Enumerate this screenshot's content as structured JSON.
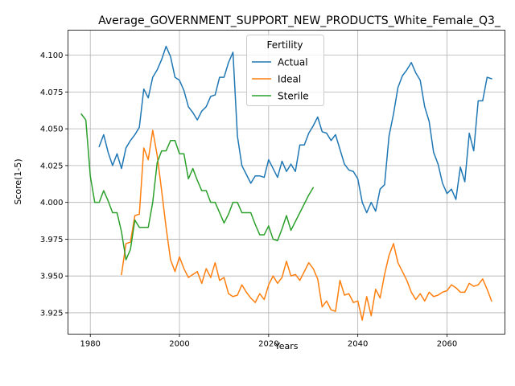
{
  "chart_data": {
    "type": "line",
    "title": "Average_GOVERNMENT_SUPPORT_NEW_PRODUCTS_White_Female_Q3_",
    "xlabel": "Years",
    "ylabel": "Score(1-5)",
    "xlim": [
      1975,
      2073
    ],
    "ylim": [
      3.9105,
      4.117
    ],
    "xticks": [
      1980,
      2000,
      2020,
      2040,
      2060
    ],
    "xtick_labels": [
      "1980",
      "2000",
      "2020",
      "2040",
      "2060"
    ],
    "yticks": [
      3.925,
      3.95,
      3.975,
      4.0,
      4.025,
      4.05,
      4.075,
      4.1
    ],
    "ytick_labels": [
      "3.925",
      "3.950",
      "3.975",
      "4.000",
      "4.025",
      "4.050",
      "4.075",
      "4.100"
    ],
    "grid": true,
    "legend": {
      "title": "Fertility",
      "placement": "top-center"
    },
    "series": [
      {
        "name": "Actual",
        "color": "#1f77b4",
        "x": [
          1982,
          1983,
          1984,
          1985,
          1986,
          1987,
          1988,
          1989,
          1990,
          1991,
          1992,
          1993,
          1994,
          1995,
          1996,
          1997,
          1998,
          1999,
          2000,
          2001,
          2002,
          2003,
          2004,
          2005,
          2006,
          2007,
          2008,
          2009,
          2010,
          2011,
          2012,
          2013,
          2014,
          2015,
          2016,
          2017,
          2018,
          2019,
          2020,
          2021,
          2022,
          2023,
          2024,
          2025,
          2026,
          2027,
          2028,
          2029,
          2030,
          2031,
          2032,
          2033,
          2034,
          2035,
          2036,
          2037,
          2038,
          2039,
          2040,
          2041,
          2042,
          2043,
          2044,
          2045,
          2046,
          2047,
          2048,
          2049,
          2050,
          2051,
          2052,
          2053,
          2054,
          2055,
          2056,
          2057,
          2058,
          2059,
          2060,
          2061,
          2062,
          2063,
          2064,
          2065,
          2066,
          2067,
          2068,
          2069,
          2070
        ],
        "values": [
          4.038,
          4.046,
          4.034,
          4.025,
          4.033,
          4.023,
          4.037,
          4.042,
          4.046,
          4.051,
          4.077,
          4.071,
          4.085,
          4.09,
          4.097,
          4.106,
          4.099,
          4.085,
          4.083,
          4.076,
          4.065,
          4.061,
          4.056,
          4.062,
          4.065,
          4.072,
          4.073,
          4.085,
          4.085,
          4.095,
          4.102,
          4.045,
          4.025,
          4.019,
          4.013,
          4.018,
          4.018,
          4.017,
          4.029,
          4.023,
          4.017,
          4.028,
          4.021,
          4.026,
          4.021,
          4.039,
          4.039,
          4.047,
          4.052,
          4.058,
          4.048,
          4.047,
          4.042,
          4.046,
          4.036,
          4.026,
          4.022,
          4.021,
          4.016,
          4.0,
          3.993,
          4.0,
          3.994,
          4.009,
          4.012,
          4.045,
          4.06,
          4.078,
          4.086,
          4.09,
          4.095,
          4.088,
          4.083,
          4.065,
          4.055,
          4.034,
          4.026,
          4.013,
          4.006,
          4.009,
          4.002,
          4.024,
          4.014,
          4.047,
          4.035,
          4.069,
          4.069,
          4.085,
          4.084
        ]
      },
      {
        "name": "Ideal",
        "color": "#ff7f0e",
        "x": [
          1987,
          1988,
          1989,
          1990,
          1991,
          1992,
          1993,
          1994,
          1995,
          1996,
          1997,
          1998,
          1999,
          2000,
          2001,
          2002,
          2003,
          2004,
          2005,
          2006,
          2007,
          2008,
          2009,
          2010,
          2011,
          2012,
          2013,
          2014,
          2015,
          2016,
          2017,
          2018,
          2019,
          2020,
          2021,
          2022,
          2023,
          2024,
          2025,
          2026,
          2027,
          2028,
          2029,
          2030,
          2031,
          2032,
          2033,
          2034,
          2035,
          2036,
          2037,
          2038,
          2039,
          2040,
          2041,
          2042,
          2043,
          2044,
          2045,
          2046,
          2047,
          2048,
          2049,
          2050,
          2051,
          2052,
          2053,
          2054,
          2055,
          2056,
          2057,
          2058,
          2059,
          2060,
          2061,
          2062,
          2063,
          2064,
          2065,
          2066,
          2067,
          2068,
          2069,
          2070
        ],
        "values": [
          3.951,
          3.972,
          3.973,
          3.991,
          3.992,
          4.037,
          4.029,
          4.049,
          4.032,
          4.008,
          3.983,
          3.961,
          3.953,
          3.963,
          3.955,
          3.949,
          3.951,
          3.953,
          3.945,
          3.955,
          3.949,
          3.959,
          3.947,
          3.949,
          3.938,
          3.936,
          3.937,
          3.944,
          3.939,
          3.935,
          3.932,
          3.938,
          3.934,
          3.944,
          3.95,
          3.945,
          3.949,
          3.96,
          3.95,
          3.951,
          3.947,
          3.953,
          3.959,
          3.955,
          3.948,
          3.929,
          3.933,
          3.927,
          3.926,
          3.947,
          3.937,
          3.938,
          3.932,
          3.933,
          3.92,
          3.936,
          3.923,
          3.941,
          3.935,
          3.951,
          3.964,
          3.972,
          3.959,
          3.953,
          3.947,
          3.939,
          3.934,
          3.938,
          3.933,
          3.939,
          3.936,
          3.937,
          3.939,
          3.94,
          3.944,
          3.942,
          3.939,
          3.939,
          3.945,
          3.943,
          3.944,
          3.948,
          3.941,
          3.933
        ]
      },
      {
        "name": "Sterile",
        "color": "#2ca02c",
        "x": [
          1978,
          1979,
          1980,
          1981,
          1982,
          1983,
          1984,
          1985,
          1986,
          1987,
          1988,
          1989,
          1990,
          1991,
          1992,
          1993,
          1994,
          1995,
          1996,
          1997,
          1998,
          1999,
          2000,
          2001,
          2002,
          2003,
          2004,
          2005,
          2006,
          2007,
          2008,
          2009,
          2010,
          2011,
          2012,
          2013,
          2014,
          2015,
          2016,
          2017,
          2018,
          2019,
          2020,
          2021,
          2022,
          2023,
          2024,
          2025,
          2026,
          2027,
          2028,
          2029,
          2030
        ],
        "values": [
          4.06,
          4.056,
          4.018,
          4.0,
          4.0,
          4.008,
          4.001,
          3.993,
          3.993,
          3.98,
          3.961,
          3.968,
          3.988,
          3.983,
          3.983,
          3.983,
          4.0,
          4.027,
          4.035,
          4.035,
          4.042,
          4.042,
          4.033,
          4.033,
          4.016,
          4.023,
          4.015,
          4.008,
          4.008,
          4.0,
          4.0,
          3.993,
          3.986,
          3.992,
          4.0,
          4.0,
          3.993,
          3.993,
          3.993,
          3.985,
          3.978,
          3.978,
          3.984,
          3.975,
          3.974,
          3.982,
          3.991,
          3.981,
          3.987,
          3.993,
          3.999,
          4.005,
          4.01
        ]
      }
    ]
  }
}
